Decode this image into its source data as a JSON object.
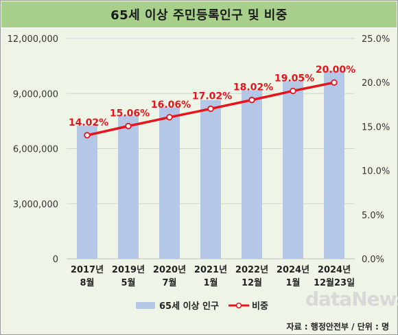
{
  "title": "65세 이상 주민등록인구 및 비중",
  "source": "자료 : 행정안전부 / 단위 : 명",
  "watermark": "dataNews",
  "colors": {
    "bar": "#b4c7e7",
    "line": "#e8131b",
    "marker_fill": "#ffffff",
    "label": "#e8131b",
    "title_bg": "#a7d18b",
    "plot_bg": "#eef5e6"
  },
  "chart_data": {
    "type": "bar",
    "categories": [
      [
        "2017년",
        "8월"
      ],
      [
        "2019년",
        "5월"
      ],
      [
        "2020년",
        "7월"
      ],
      [
        "2021년",
        "1월"
      ],
      [
        "2022년",
        "12월"
      ],
      [
        "2024년",
        "1월"
      ],
      [
        "2024년",
        "12월23일"
      ]
    ],
    "series": [
      {
        "name": "65세 이상 인구",
        "type": "bar",
        "axis": "left",
        "values": [
          7250000,
          7800000,
          8250000,
          8650000,
          9180000,
          9700000,
          10240000
        ]
      },
      {
        "name": "비중",
        "type": "line",
        "axis": "right",
        "values": [
          14.02,
          15.06,
          16.06,
          17.02,
          18.02,
          19.05,
          20.0
        ],
        "labels": [
          "14.02%",
          "15.06%",
          "16.06%",
          "17.02%",
          "18.02%",
          "19.05%",
          "20.00%"
        ]
      }
    ],
    "y_left": {
      "ylim": [
        0,
        12000000
      ],
      "ticks": [
        "0",
        "3,000,000",
        "6,000,000",
        "9,000,000",
        "12,000,000"
      ]
    },
    "y_right": {
      "ylim": [
        0,
        25
      ],
      "ticks": [
        "0.0%",
        "5.0%",
        "10.0%",
        "15.0%",
        "20.0%",
        "25.0%"
      ]
    },
    "legend": {
      "placement": "bottom",
      "items": [
        "65세 이상 인구",
        "비중"
      ]
    },
    "grid": true
  }
}
